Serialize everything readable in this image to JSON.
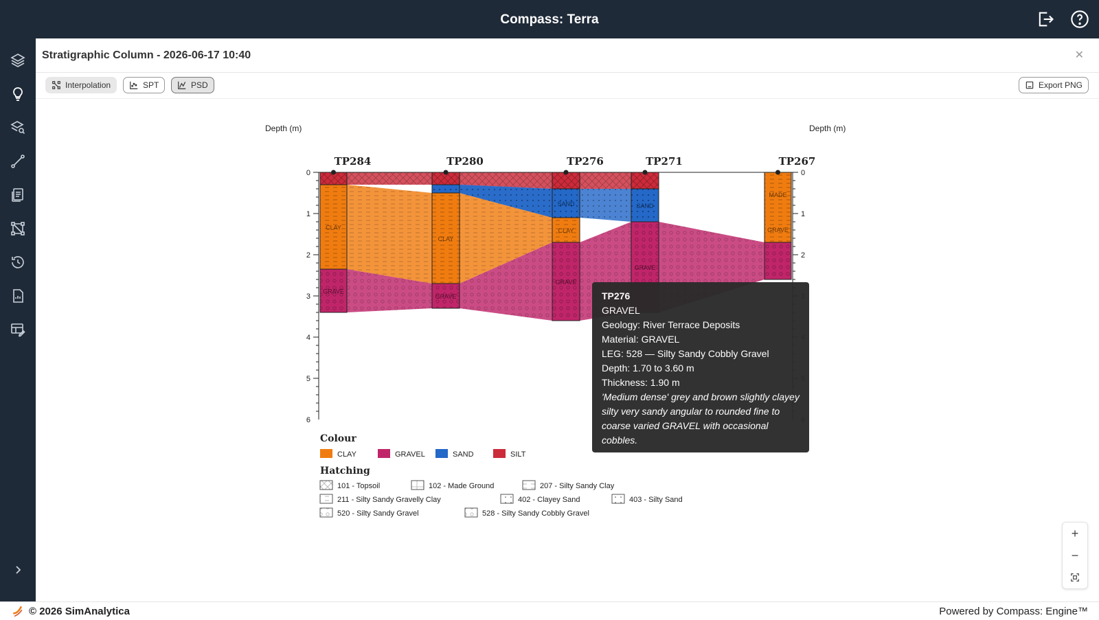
{
  "app": {
    "title": "Compass: Terra"
  },
  "panel": {
    "title": "Stratigraphic Column - 2026-06-17 10:40"
  },
  "toolbar": {
    "interpolation": "Interpolation",
    "spt": "SPT",
    "psd": "PSD",
    "export": "Export PNG"
  },
  "chart_data": {
    "type": "stratigraphic-column",
    "y_axis_left_label": "Depth (m)",
    "y_axis_right_label": "Depth (m)",
    "ylim": [
      0,
      6
    ],
    "y_ticks": [
      0,
      1,
      2,
      3,
      4,
      5,
      6
    ],
    "boreholes": [
      {
        "name": "TP284",
        "layers": [
          {
            "material": "SILT",
            "top": 0,
            "bottom": 0.3,
            "label": ""
          },
          {
            "material": "CLAY",
            "top": 0.3,
            "bottom": 2.35,
            "label": "CLAY"
          },
          {
            "material": "GRAVEL",
            "top": 2.35,
            "bottom": 3.4,
            "label": "GRAVE"
          }
        ]
      },
      {
        "name": "TP280",
        "layers": [
          {
            "material": "SILT",
            "top": 0,
            "bottom": 0.3,
            "label": ""
          },
          {
            "material": "SAND",
            "top": 0.3,
            "bottom": 0.5,
            "label": ""
          },
          {
            "material": "CLAY",
            "top": 0.5,
            "bottom": 2.7,
            "label": "CLAY"
          },
          {
            "material": "GRAVEL",
            "top": 2.7,
            "bottom": 3.3,
            "label": "GRAVE"
          }
        ]
      },
      {
        "name": "TP276",
        "layers": [
          {
            "material": "SILT",
            "top": 0,
            "bottom": 0.4,
            "label": ""
          },
          {
            "material": "SAND",
            "top": 0.4,
            "bottom": 1.1,
            "label": "SAND"
          },
          {
            "material": "CLAY",
            "top": 1.1,
            "bottom": 1.7,
            "label": "CLAY"
          },
          {
            "material": "GRAVEL",
            "top": 1.7,
            "bottom": 3.6,
            "label": "GRAVE"
          }
        ]
      },
      {
        "name": "TP271",
        "layers": [
          {
            "material": "SILT",
            "top": 0,
            "bottom": 0.4,
            "label": ""
          },
          {
            "material": "SAND",
            "top": 0.4,
            "bottom": 1.2,
            "label": "SAND"
          },
          {
            "material": "GRAVEL",
            "top": 1.2,
            "bottom": 3.4,
            "label": "GRAVE"
          }
        ]
      },
      {
        "name": "TP267",
        "layers": [
          {
            "material": "CLAY",
            "top": 0,
            "bottom": 1.7,
            "label": "MADE",
            "label2": "GRAVE"
          },
          {
            "material": "GRAVEL",
            "top": 1.7,
            "bottom": 2.6,
            "label": ""
          }
        ]
      }
    ],
    "colour_legend_title": "Colour",
    "colour_legend": [
      {
        "name": "CLAY",
        "color": "#f07c10"
      },
      {
        "name": "GRAVEL",
        "color": "#c0256a"
      },
      {
        "name": "SAND",
        "color": "#2468c8"
      },
      {
        "name": "SILT",
        "color": "#cc2b3a"
      }
    ],
    "hatching_legend_title": "Hatching",
    "hatching_legend": [
      {
        "code": "101 - Topsoil",
        "pattern": "cross"
      },
      {
        "code": "102 - Made Ground",
        "pattern": "grid"
      },
      {
        "code": "207 - Silty Sandy Clay",
        "pattern": "dash"
      },
      {
        "code": "211 - Silty Sandy Gravelly Clay",
        "pattern": "dash"
      },
      {
        "code": "402 - Clayey Sand",
        "pattern": "dot"
      },
      {
        "code": "403 - Silty Sand",
        "pattern": "dot"
      },
      {
        "code": "520 - Silty Sandy Gravel",
        "pattern": "circle"
      },
      {
        "code": "528 - Silty Sandy Cobbly Gravel",
        "pattern": "circle"
      }
    ]
  },
  "tooltip": {
    "title": "TP276",
    "material": "GRAVEL",
    "geology": "Geology: River Terrace Deposits",
    "material_line": "Material: GRAVEL",
    "leg": "LEG: 528 — Silty Sandy Cobbly Gravel",
    "depth": "Depth: 1.70 to 3.60 m",
    "thickness": "Thickness: 1.90 m",
    "description": "'Medium dense' grey and brown slightly clayey silty very sandy angular to rounded fine to coarse varied GRAVEL with occasional cobbles."
  },
  "zoom": {
    "in": "+",
    "out": "−"
  },
  "footer": {
    "copyright": "© 2026 SimAnalytica",
    "powered": "Powered by Compass: Engine™"
  }
}
